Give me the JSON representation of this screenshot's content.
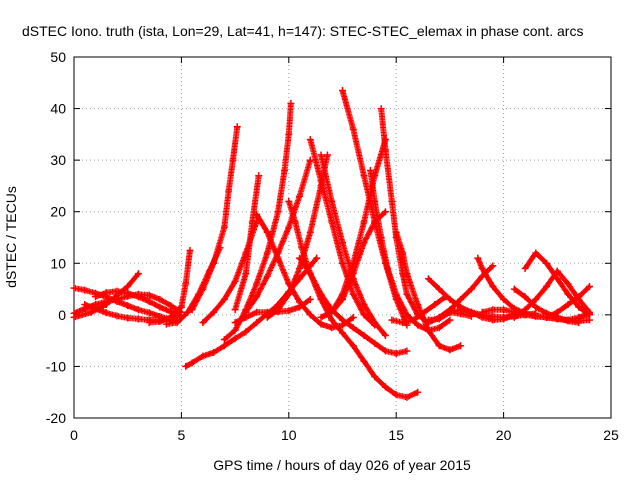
{
  "chart_data": {
    "type": "scatter",
    "title": "dSTEC Iono. truth (ista, Lon=29, Lat=41, h=147): STEC-STEC_elemax in phase cont. arcs",
    "xlabel": "GPS time / hours of day 026 of year 2015",
    "ylabel": "dSTEC  / TECUs",
    "xlim": [
      0,
      25
    ],
    "ylim": [
      -20,
      50
    ],
    "xticks": [
      0,
      5,
      10,
      15,
      20,
      25
    ],
    "yticks": [
      -20,
      -10,
      0,
      10,
      20,
      30,
      40,
      50
    ],
    "grid": true,
    "marker": "plus",
    "color": "#ff0000",
    "series": [
      {
        "x": [
          0.0,
          0.5,
          1.0,
          1.5,
          2.0,
          2.5,
          3.0,
          3.5,
          4.0,
          4.5,
          4.8
        ],
        "y": [
          5.2,
          4.8,
          4.2,
          3.5,
          2.6,
          1.8,
          1.0,
          0.4,
          -0.3,
          -0.9,
          -1.2
        ]
      },
      {
        "x": [
          0.0,
          0.8,
          1.5,
          2.0,
          2.5,
          3.0
        ],
        "y": [
          -0.5,
          0.5,
          2.0,
          3.8,
          5.5,
          8.0
        ]
      },
      {
        "x": [
          0.0,
          0.5,
          1.0,
          1.5,
          2.0,
          2.5,
          3.0,
          3.5,
          4.0,
          4.5,
          5.0
        ],
        "y": [
          0.3,
          1.2,
          2.0,
          2.6,
          3.0,
          3.6,
          4.0,
          3.8,
          3.0,
          1.8,
          0.5
        ]
      },
      {
        "x": [
          0.5,
          1.0,
          1.5,
          2.0,
          2.5,
          3.0,
          3.5,
          4.0,
          4.5,
          4.8
        ],
        "y": [
          2.0,
          1.2,
          0.4,
          -0.2,
          -0.6,
          -0.8,
          -1.0,
          -1.0,
          -0.8,
          -0.4
        ]
      },
      {
        "x": [
          1.0,
          1.5,
          2.0,
          2.5,
          3.0,
          3.5,
          4.0,
          4.5,
          5.0
        ],
        "y": [
          3.5,
          4.3,
          4.6,
          4.2,
          3.5,
          2.6,
          1.5,
          0.6,
          -0.2
        ]
      },
      {
        "x": [
          3.5,
          4.0,
          4.5,
          5.0,
          5.2,
          5.4
        ],
        "y": [
          -1.5,
          -1.3,
          -0.5,
          1.5,
          6.0,
          12.5
        ]
      },
      {
        "x": [
          4.3,
          4.8,
          5.3,
          5.8,
          6.3,
          6.8
        ],
        "y": [
          -1.8,
          -1.5,
          0.5,
          4.0,
          8.5,
          13.0
        ]
      },
      {
        "x": [
          5.2,
          5.5,
          6.0,
          6.5,
          7.0,
          7.5,
          8.0,
          8.5,
          9.0,
          9.5,
          10.0,
          10.5,
          11.0,
          11.3
        ],
        "y": [
          -10.0,
          -9.3,
          -8.0,
          -7.3,
          -6.0,
          -4.6,
          -3.3,
          -1.5,
          0.2,
          2.0,
          4.5,
          7.0,
          9.5,
          11.0
        ]
      },
      {
        "x": [
          5.5,
          6.0,
          6.5,
          7.0,
          7.2,
          7.4,
          7.6
        ],
        "y": [
          1.0,
          5.0,
          10.0,
          17.0,
          24.0,
          30.0,
          36.5
        ]
      },
      {
        "x": [
          6.0,
          6.5,
          7.0,
          7.5,
          8.0,
          8.5
        ],
        "y": [
          -1.5,
          0.5,
          3.0,
          6.5,
          12.0,
          18.0
        ]
      },
      {
        "x": [
          7.0,
          7.5,
          8.0,
          8.5,
          9.0,
          9.5,
          9.8,
          10.0,
          10.1
        ],
        "y": [
          -4.8,
          -3.0,
          1.0,
          6.0,
          12.0,
          20.0,
          28.0,
          35.0,
          41.0
        ]
      },
      {
        "x": [
          7.5,
          8.0,
          8.3,
          8.6
        ],
        "y": [
          1.0,
          8.0,
          18.0,
          27.0
        ]
      },
      {
        "x": [
          7.5,
          8.0,
          8.5,
          9.0,
          9.5,
          10.0,
          10.5,
          11.0
        ],
        "y": [
          -1.5,
          -0.5,
          0.5,
          0.5,
          0.6,
          0.8,
          1.5,
          3.0
        ]
      },
      {
        "x": [
          8.0,
          8.5,
          9.0,
          9.5,
          10.0,
          10.5,
          11.0
        ],
        "y": [
          0.5,
          3.5,
          7.5,
          12.0,
          17.0,
          23.0,
          30.0
        ]
      },
      {
        "x": [
          8.5,
          9.0,
          9.5,
          10.0,
          10.5,
          11.0,
          11.5,
          12.0,
          12.5,
          13.0
        ],
        "y": [
          19.5,
          16.0,
          11.0,
          6.0,
          2.5,
          0.0,
          -1.8,
          -2.5,
          -2.0,
          -0.5
        ]
      },
      {
        "x": [
          9.0,
          9.5,
          10.0,
          10.5,
          11.0,
          11.5,
          11.8
        ],
        "y": [
          -0.5,
          1.0,
          4.0,
          9.0,
          16.0,
          25.0,
          31.0
        ]
      },
      {
        "x": [
          10.0,
          10.3,
          10.6,
          11.0,
          11.5,
          12.0,
          12.5,
          13.0,
          13.5,
          14.0,
          14.5,
          15.0,
          15.5,
          16.0
        ],
        "y": [
          22.0,
          18.0,
          13.0,
          8.0,
          3.0,
          -1.0,
          -3.5,
          -6.0,
          -9.0,
          -12.0,
          -14.0,
          -15.5,
          -16.0,
          -15.0
        ]
      },
      {
        "x": [
          10.5,
          11.0,
          11.5,
          12.0,
          12.5,
          13.0,
          13.5,
          14.0,
          14.5,
          15.0,
          15.5
        ],
        "y": [
          11.0,
          8.0,
          4.0,
          1.0,
          -1.0,
          -2.5,
          -4.0,
          -5.5,
          -7.0,
          -7.5,
          -7.0
        ]
      },
      {
        "x": [
          11.0,
          11.5,
          12.0,
          12.5,
          13.0,
          13.5,
          14.0
        ],
        "y": [
          34.0,
          26.0,
          18.0,
          10.0,
          4.0,
          0.0,
          -2.0
        ]
      },
      {
        "x": [
          11.5,
          12.0,
          12.5,
          13.0,
          13.5,
          14.0,
          14.5
        ],
        "y": [
          31.0,
          22.0,
          14.0,
          7.0,
          2.0,
          -1.5,
          -4.0
        ]
      },
      {
        "x": [
          12.5,
          13.0,
          13.5,
          14.0,
          14.5,
          15.0,
          15.5
        ],
        "y": [
          43.5,
          36.0,
          27.0,
          18.0,
          10.0,
          3.0,
          -2.0
        ]
      },
      {
        "x": [
          11.5,
          12.0,
          12.5,
          13.0,
          13.5,
          14.0,
          14.5
        ],
        "y": [
          -0.5,
          0.5,
          4.0,
          10.0,
          18.0,
          27.0,
          34.0
        ]
      },
      {
        "x": [
          12.0,
          12.5,
          13.0,
          13.5,
          14.0,
          14.5
        ],
        "y": [
          0.5,
          3.0,
          8.0,
          14.0,
          18.0,
          20.0
        ]
      },
      {
        "x": [
          14.3,
          14.5,
          14.8,
          15.0,
          15.3,
          15.5,
          16.0,
          16.5,
          17.0,
          17.5,
          18.0,
          18.5
        ],
        "y": [
          40.0,
          32.0,
          22.0,
          15.0,
          8.0,
          4.0,
          0.0,
          -1.5,
          -0.5,
          0.5,
          0.2,
          -0.3
        ]
      },
      {
        "x": [
          13.8,
          14.0,
          14.3,
          14.6,
          15.0,
          15.5,
          16.0,
          16.5,
          17.0,
          17.5
        ],
        "y": [
          28.0,
          22.0,
          15.0,
          9.0,
          4.0,
          0.0,
          -2.0,
          -3.0,
          -2.5,
          -1.0
        ]
      },
      {
        "x": [
          15.0,
          15.3,
          15.5,
          16.0,
          16.5,
          17.0,
          17.5,
          18.0
        ],
        "y": [
          16.0,
          12.0,
          8.0,
          2.0,
          -3.0,
          -6.0,
          -6.8,
          -6.0
        ]
      },
      {
        "x": [
          14.8,
          15.3,
          15.8,
          16.3,
          16.8,
          17.3
        ],
        "y": [
          -1.0,
          -1.5,
          -1.0,
          0.5,
          2.0,
          3.5
        ]
      },
      {
        "x": [
          16.5,
          17.0,
          17.5,
          18.0,
          18.5,
          19.0,
          19.5,
          20.0,
          20.5,
          21.0
        ],
        "y": [
          -1.0,
          -0.8,
          0.5,
          1.0,
          0.5,
          -0.5,
          -1.0,
          -0.8,
          0.0,
          0.5
        ]
      },
      {
        "x": [
          16.5,
          17.0,
          17.5,
          18.0,
          18.5,
          19.0,
          19.5,
          20.0,
          20.5,
          21.0,
          21.5
        ],
        "y": [
          7.0,
          5.0,
          3.0,
          1.5,
          0.5,
          0.0,
          -0.3,
          -0.5,
          -0.3,
          0.0,
          0.3
        ]
      },
      {
        "x": [
          17.0,
          17.5,
          18.0,
          18.5,
          19.0,
          19.5
        ],
        "y": [
          -0.5,
          1.0,
          3.0,
          5.0,
          7.5,
          9.5
        ]
      },
      {
        "x": [
          18.8,
          19.0,
          19.5,
          20.0,
          20.5,
          21.0,
          21.5,
          22.0,
          22.5,
          23.0,
          23.5,
          24.0
        ],
        "y": [
          11.0,
          9.0,
          5.5,
          3.0,
          1.2,
          0.3,
          -0.2,
          -0.5,
          -0.8,
          -1.0,
          -0.5,
          0.2
        ]
      },
      {
        "x": [
          19.0,
          19.5,
          20.0,
          20.5,
          21.0,
          21.5,
          22.0,
          22.5,
          23.0,
          23.5,
          24.0
        ],
        "y": [
          0.5,
          1.0,
          1.0,
          0.5,
          0.0,
          -0.3,
          -0.5,
          -0.8,
          -1.0,
          -1.2,
          -1.0
        ]
      },
      {
        "x": [
          20.5,
          21.0,
          21.5,
          22.0,
          22.5,
          23.0,
          23.5
        ],
        "y": [
          5.0,
          3.5,
          1.5,
          0.3,
          -0.5,
          -1.2,
          -1.5
        ]
      },
      {
        "x": [
          20.5,
          21.0,
          21.5,
          22.0,
          22.5,
          23.0,
          23.5,
          24.0
        ],
        "y": [
          -0.5,
          1.0,
          3.0,
          5.5,
          8.5,
          6.0,
          3.0,
          0.5
        ]
      },
      {
        "x": [
          21.0,
          21.5,
          22.0,
          22.5,
          23.0,
          23.5,
          24.0
        ],
        "y": [
          9.0,
          12.0,
          10.0,
          7.0,
          4.0,
          1.5,
          0.0
        ]
      },
      {
        "x": [
          22.0,
          22.5,
          23.0,
          23.5,
          24.0
        ],
        "y": [
          -0.5,
          0.5,
          2.0,
          3.5,
          5.5
        ]
      }
    ]
  }
}
